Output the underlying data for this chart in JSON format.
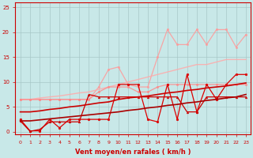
{
  "x": [
    0,
    1,
    2,
    3,
    4,
    5,
    6,
    7,
    8,
    9,
    10,
    11,
    12,
    13,
    14,
    15,
    16,
    17,
    18,
    19,
    20,
    21,
    22,
    23
  ],
  "series": [
    {
      "color": "#ff9999",
      "alpha": 0.85,
      "linewidth": 0.9,
      "marker": "o",
      "markersize": 1.8,
      "y": [
        6.5,
        6.5,
        6.5,
        6.5,
        6.5,
        6.5,
        6.5,
        6.5,
        9.0,
        12.5,
        13.0,
        9.5,
        9.0,
        9.0,
        15.0,
        20.5,
        17.5,
        17.5,
        20.5,
        17.5,
        20.5,
        20.5,
        17.0,
        19.5
      ]
    },
    {
      "color": "#ffaaaa",
      "alpha": 0.85,
      "linewidth": 1.0,
      "marker": null,
      "markersize": 0,
      "y": [
        6.5,
        6.5,
        6.8,
        7.0,
        7.2,
        7.5,
        7.8,
        8.0,
        8.5,
        9.0,
        9.5,
        10.0,
        10.5,
        11.0,
        11.5,
        12.0,
        12.5,
        13.0,
        13.5,
        13.5,
        14.0,
        14.5,
        14.5,
        14.5
      ]
    },
    {
      "color": "#ff8888",
      "alpha": 0.85,
      "linewidth": 0.9,
      "marker": "o",
      "markersize": 1.8,
      "y": [
        6.5,
        6.5,
        6.5,
        6.5,
        6.5,
        6.5,
        6.5,
        6.5,
        8.0,
        9.0,
        9.0,
        9.0,
        8.0,
        8.0,
        9.0,
        9.5,
        9.5,
        9.5,
        9.5,
        9.5,
        9.5,
        9.5,
        9.5,
        9.5
      ]
    },
    {
      "color": "#dd0000",
      "alpha": 1.0,
      "linewidth": 0.9,
      "marker": "o",
      "markersize": 2.0,
      "y": [
        2.5,
        0.2,
        0.2,
        2.5,
        0.8,
        2.5,
        2.5,
        2.5,
        2.5,
        2.5,
        9.5,
        9.5,
        9.5,
        2.5,
        2.0,
        9.5,
        2.5,
        11.5,
        4.0,
        9.5,
        6.5,
        9.5,
        11.5,
        11.5
      ]
    },
    {
      "color": "#cc0000",
      "alpha": 1.0,
      "linewidth": 0.9,
      "marker": "^",
      "markersize": 2.0,
      "y": [
        2.2,
        0.1,
        0.5,
        2.0,
        2.0,
        2.0,
        2.0,
        7.5,
        7.0,
        7.0,
        7.0,
        7.0,
        7.0,
        7.0,
        7.0,
        7.0,
        7.0,
        4.0,
        4.0,
        7.0,
        7.0,
        7.0,
        7.0,
        7.0
      ]
    },
    {
      "color": "#cc0000",
      "alpha": 1.0,
      "linewidth": 1.2,
      "marker": null,
      "markersize": 0,
      "y": [
        4.0,
        4.0,
        4.2,
        4.5,
        4.7,
        5.0,
        5.2,
        5.5,
        5.8,
        6.0,
        6.5,
        6.8,
        7.0,
        7.2,
        7.5,
        7.8,
        8.0,
        8.3,
        8.5,
        8.8,
        9.0,
        9.2,
        9.5,
        9.8
      ]
    },
    {
      "color": "#aa0000",
      "alpha": 1.0,
      "linewidth": 1.2,
      "marker": null,
      "markersize": 0,
      "y": [
        2.2,
        2.2,
        2.4,
        2.6,
        2.8,
        3.0,
        3.2,
        3.4,
        3.6,
        3.8,
        4.0,
        4.3,
        4.5,
        4.8,
        5.0,
        5.3,
        5.5,
        5.8,
        6.0,
        6.3,
        6.5,
        6.8,
        7.0,
        7.5
      ]
    }
  ],
  "xlim": [
    -0.5,
    23.5
  ],
  "ylim": [
    -0.5,
    26
  ],
  "yticks": [
    0,
    5,
    10,
    15,
    20,
    25
  ],
  "xticks": [
    0,
    1,
    2,
    3,
    4,
    5,
    6,
    7,
    8,
    9,
    10,
    11,
    12,
    13,
    14,
    15,
    16,
    17,
    18,
    19,
    20,
    21,
    22,
    23
  ],
  "xlabel": "Vent moyen/en rafales ( km/h )",
  "background_color": "#c8e8e8",
  "grid_color": "#a8c8c8",
  "axis_color": "#cc0000",
  "label_color": "#cc0000",
  "figsize": [
    3.2,
    2.0
  ],
  "dpi": 100
}
